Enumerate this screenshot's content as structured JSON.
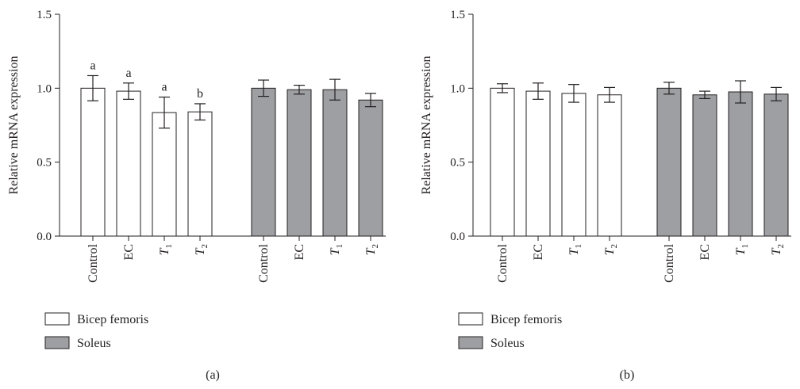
{
  "chart_data": [
    {
      "type": "bar",
      "panel_label": "(a)",
      "ylabel": "Relative mRNA expression",
      "ylim": [
        0,
        1.5
      ],
      "yticks": [
        "0.0",
        "0.5",
        "1.0",
        "1.5"
      ],
      "groups": [
        {
          "name": "Bicep femoris",
          "color": "#ffffff",
          "categories": [
            {
              "label": "Control",
              "sub": ""
            },
            {
              "label": "EC",
              "sub": ""
            },
            {
              "label": "T",
              "sub": "1"
            },
            {
              "label": "T",
              "sub": "2"
            }
          ],
          "values": [
            1.0,
            0.98,
            0.835,
            0.84
          ],
          "errors": [
            0.085,
            0.055,
            0.105,
            0.055
          ],
          "sig": [
            "a",
            "a",
            "a",
            "b"
          ]
        },
        {
          "name": "Soleus",
          "color": "#9d9fa2",
          "categories": [
            {
              "label": "Control",
              "sub": ""
            },
            {
              "label": "EC",
              "sub": ""
            },
            {
              "label": "T",
              "sub": "1"
            },
            {
              "label": "T",
              "sub": "2"
            }
          ],
          "values": [
            1.0,
            0.99,
            0.99,
            0.92
          ],
          "errors": [
            0.055,
            0.03,
            0.07,
            0.045
          ],
          "sig": [
            "",
            "",
            "",
            ""
          ]
        }
      ],
      "legend": [
        {
          "label": "Bicep femoris",
          "color": "#ffffff"
        },
        {
          "label": "Soleus",
          "color": "#9d9fa2"
        }
      ]
    },
    {
      "type": "bar",
      "panel_label": "(b)",
      "ylabel": "Relative mRNA expression",
      "ylim": [
        0,
        1.5
      ],
      "yticks": [
        "0.0",
        "0.5",
        "1.0",
        "1.5"
      ],
      "groups": [
        {
          "name": "Bicep femoris",
          "color": "#ffffff",
          "categories": [
            {
              "label": "Control",
              "sub": ""
            },
            {
              "label": "EC",
              "sub": ""
            },
            {
              "label": "T",
              "sub": "1"
            },
            {
              "label": "T",
              "sub": "2"
            }
          ],
          "values": [
            1.0,
            0.98,
            0.965,
            0.955
          ],
          "errors": [
            0.03,
            0.055,
            0.06,
            0.05
          ],
          "sig": [
            "",
            "",
            "",
            ""
          ]
        },
        {
          "name": "Soleus",
          "color": "#9d9fa2",
          "categories": [
            {
              "label": "Control",
              "sub": ""
            },
            {
              "label": "EC",
              "sub": ""
            },
            {
              "label": "T",
              "sub": "1"
            },
            {
              "label": "T",
              "sub": "2"
            }
          ],
          "values": [
            1.0,
            0.955,
            0.975,
            0.96
          ],
          "errors": [
            0.04,
            0.025,
            0.075,
            0.045
          ],
          "sig": [
            "",
            "",
            "",
            ""
          ]
        }
      ],
      "legend": [
        {
          "label": "Bicep femoris",
          "color": "#ffffff"
        },
        {
          "label": "Soleus",
          "color": "#9d9fa2"
        }
      ]
    }
  ]
}
